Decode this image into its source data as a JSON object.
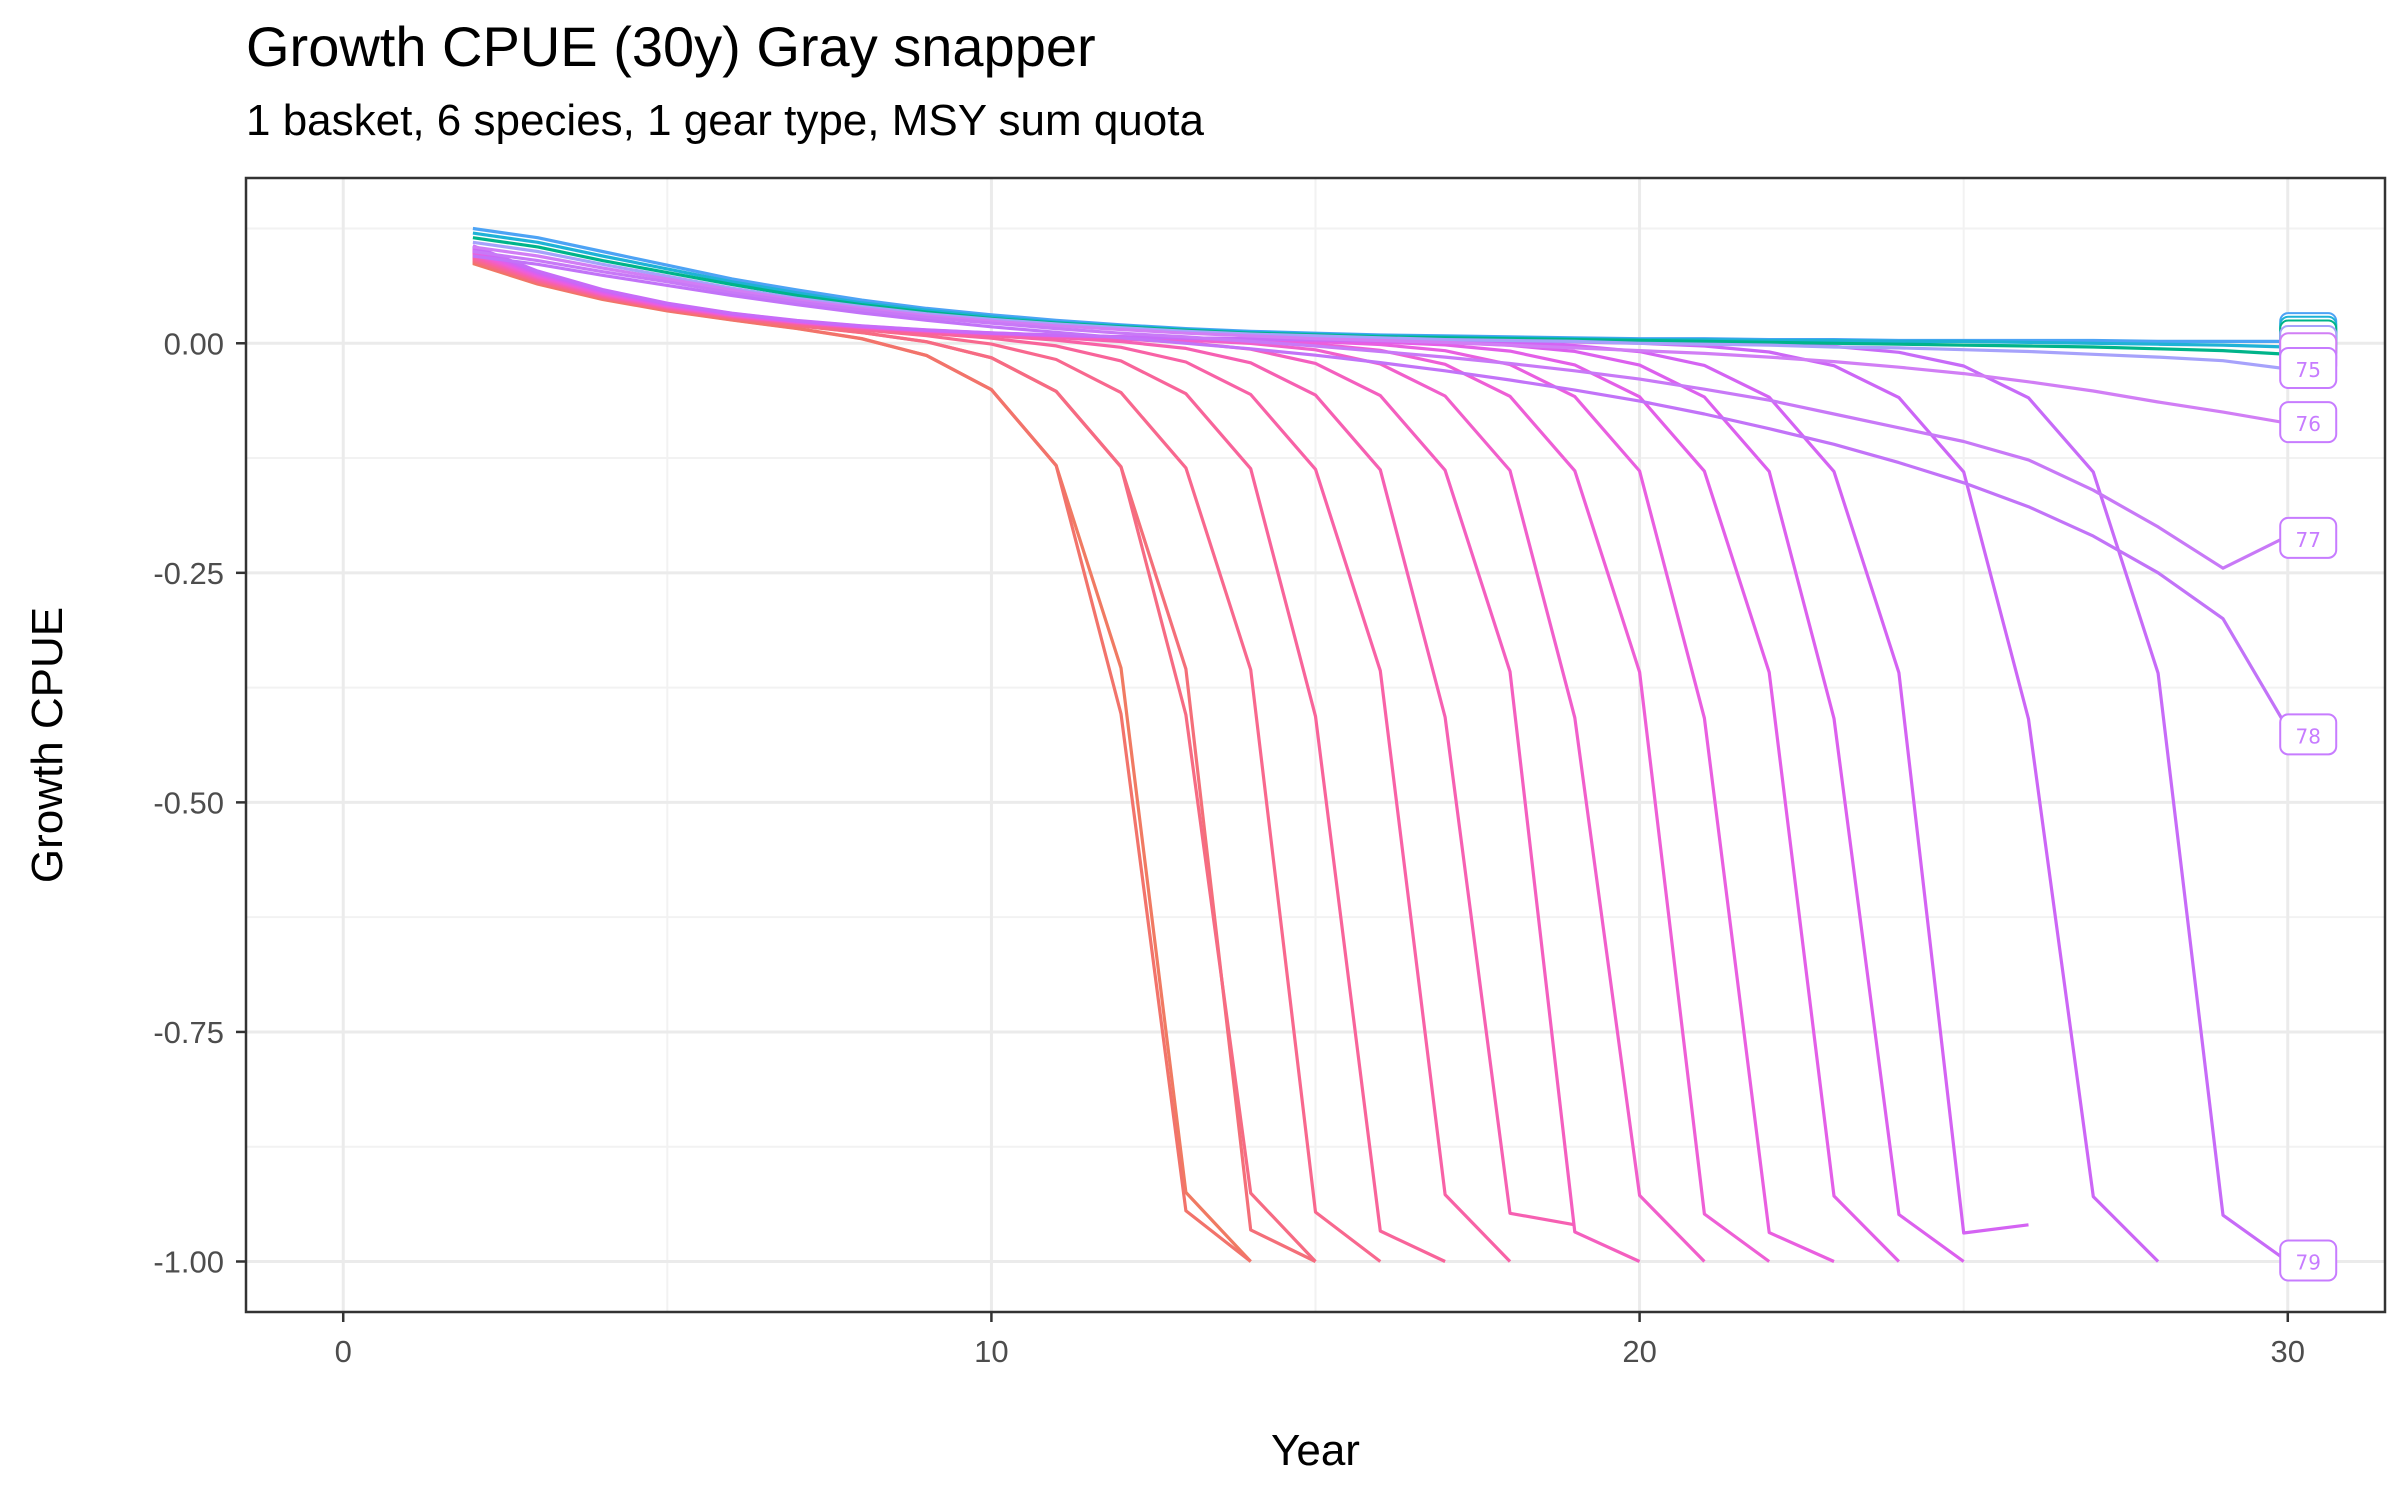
{
  "chart_data": {
    "type": "line",
    "title": "Growth CPUE (30y) Gray snapper",
    "subtitle": "1 basket, 6 species, 1 gear type, MSY sum quota",
    "xlabel": "Year",
    "ylabel": "Growth CPUE",
    "xlim": [
      -1.5,
      31.5
    ],
    "ylim": [
      -1.055,
      0.18
    ],
    "x_ticks": [
      0,
      10,
      20,
      30
    ],
    "x_tick_labels": [
      "0",
      "10",
      "20",
      "30"
    ],
    "y_ticks": [
      0,
      -0.25,
      -0.5,
      -0.75,
      -1
    ],
    "y_tick_labels": [
      "0.00",
      "-0.25",
      "-0.50",
      "-0.75",
      "-1.00"
    ],
    "grid": true,
    "legend": "none",
    "collapse_family": {
      "description_note": "",
      "start_year": 2,
      "collapse_years": [
        14,
        14,
        15,
        15,
        16,
        17,
        18,
        19,
        20,
        21,
        22,
        23,
        24,
        25,
        26,
        28,
        30
      ],
      "final_values": [
        -1.0,
        -1.0,
        -1.0,
        -1.0,
        -1.0,
        -1.0,
        -1.0,
        -0.96,
        -1.0,
        -1.0,
        -1.0,
        -1.0,
        -1.0,
        -1.0,
        -0.96,
        -1.0,
        -1.0
      ],
      "colors": [
        "#F07A62",
        "#F2736B",
        "#F46F79",
        "#F66B83",
        "#F8688E",
        "#F8649A",
        "#F862A6",
        "#F660B2",
        "#F45FBF",
        "#F15FCB",
        "#EE5FD6",
        "#E95FE0",
        "#E35FE8",
        "#DC60EE",
        "#D463F3",
        "#CC66F6",
        "#C76BF8"
      ]
    },
    "series": [
      {
        "x": [
          2,
          3,
          4,
          5,
          6,
          7,
          8,
          9,
          10,
          11,
          12,
          13,
          14,
          15,
          16,
          17,
          18,
          19,
          20,
          21,
          22,
          23,
          24,
          25,
          26,
          27,
          28,
          29,
          30
        ],
        "y": [
          0.125,
          0.115,
          0.1,
          0.085,
          0.07,
          0.058,
          0.047,
          0.038,
          0.031,
          0.025,
          0.02,
          0.016,
          0.013,
          0.011,
          0.009,
          0.008,
          0.007,
          0.006,
          0.005,
          0.005,
          0.004,
          0.004,
          0.003,
          0.003,
          0.003,
          0.003,
          0.002,
          0.002,
          0.002
        ],
        "color": "#4DA3F5",
        "name": ""
      },
      {
        "x": [
          2,
          3,
          4,
          5,
          6,
          7,
          8,
          9,
          10,
          11,
          12,
          13,
          14,
          15,
          16,
          17,
          18,
          19,
          20,
          21,
          22,
          23,
          24,
          25,
          26,
          27,
          28,
          29,
          30
        ],
        "y": [
          0.12,
          0.11,
          0.095,
          0.081,
          0.067,
          0.055,
          0.044,
          0.036,
          0.029,
          0.023,
          0.019,
          0.015,
          0.012,
          0.01,
          0.008,
          0.007,
          0.006,
          0.005,
          0.004,
          0.004,
          0.003,
          0.003,
          0.002,
          0.002,
          0.001,
          0.0,
          -0.001,
          -0.002,
          -0.004
        ],
        "color": "#1FB2D6",
        "name": ""
      },
      {
        "x": [
          2,
          3,
          4,
          5,
          6,
          7,
          8,
          9,
          10,
          11,
          12,
          13,
          14,
          15,
          16,
          17,
          18,
          19,
          20,
          21,
          22,
          23,
          24,
          25,
          26,
          27,
          28,
          29,
          30
        ],
        "y": [
          0.115,
          0.105,
          0.09,
          0.077,
          0.064,
          0.052,
          0.042,
          0.034,
          0.027,
          0.022,
          0.018,
          0.014,
          0.011,
          0.009,
          0.007,
          0.006,
          0.005,
          0.004,
          0.003,
          0.002,
          0.001,
          0.0,
          -0.001,
          -0.002,
          -0.003,
          -0.004,
          -0.006,
          -0.008,
          -0.012
        ],
        "color": "#00B48A",
        "name": ""
      },
      {
        "x": [
          2,
          3,
          4,
          5,
          6,
          7,
          8,
          9,
          10,
          11,
          12,
          13,
          14,
          15,
          16,
          17,
          18,
          19,
          20,
          21,
          22,
          23,
          24,
          25,
          26,
          27,
          28,
          29,
          30
        ],
        "y": [
          0.11,
          0.1,
          0.086,
          0.073,
          0.06,
          0.049,
          0.04,
          0.032,
          0.026,
          0.021,
          0.017,
          0.013,
          0.01,
          0.008,
          0.006,
          0.004,
          0.003,
          0.002,
          0.0,
          -0.001,
          -0.002,
          -0.004,
          -0.005,
          -0.007,
          -0.009,
          -0.012,
          -0.015,
          -0.019,
          -0.028
        ],
        "color": "#A6A2FB",
        "name": ""
      },
      {
        "x": [
          2,
          3,
          4,
          5,
          6,
          7,
          8,
          9,
          10,
          11,
          12,
          13,
          14,
          15,
          16,
          17,
          18,
          19,
          20,
          21,
          22,
          23,
          24,
          25,
          26,
          27,
          28,
          29,
          30
        ],
        "y": [
          0.105,
          0.095,
          0.082,
          0.07,
          0.058,
          0.047,
          0.038,
          0.03,
          0.024,
          0.019,
          0.015,
          0.011,
          0.008,
          0.005,
          0.003,
          0.001,
          -0.002,
          -0.005,
          -0.008,
          -0.011,
          -0.015,
          -0.02,
          -0.026,
          -0.033,
          -0.042,
          -0.052,
          -0.064,
          -0.075,
          -0.087
        ],
        "color": "#D17EF5",
        "name": ""
      },
      {
        "x": [
          2,
          3,
          4,
          5,
          6,
          7,
          8,
          9,
          10,
          11,
          12,
          13,
          14,
          15,
          16,
          17,
          18,
          19,
          20,
          21,
          22,
          23,
          24,
          25,
          26,
          27,
          28,
          29,
          30
        ],
        "y": [
          0.1,
          0.09,
          0.078,
          0.067,
          0.055,
          0.045,
          0.036,
          0.028,
          0.022,
          0.016,
          0.011,
          0.007,
          0.002,
          -0.003,
          -0.009,
          -0.015,
          -0.022,
          -0.03,
          -0.039,
          -0.05,
          -0.062,
          -0.077,
          -0.092,
          -0.107,
          -0.127,
          -0.16,
          -0.2,
          -0.245,
          -0.21
        ],
        "color": "#C879F7",
        "name": ""
      },
      {
        "x": [
          2,
          3,
          4,
          5,
          6,
          7,
          8,
          9,
          10,
          11,
          12,
          13,
          14,
          15,
          16,
          17,
          18,
          19,
          20,
          21,
          22,
          23,
          24,
          25,
          26,
          27,
          28,
          29,
          30
        ],
        "y": [
          0.095,
          0.086,
          0.074,
          0.063,
          0.052,
          0.042,
          0.033,
          0.025,
          0.018,
          0.012,
          0.006,
          0.0,
          -0.006,
          -0.013,
          -0.021,
          -0.03,
          -0.04,
          -0.051,
          -0.063,
          -0.077,
          -0.093,
          -0.11,
          -0.13,
          -0.152,
          -0.178,
          -0.21,
          -0.25,
          -0.3,
          -0.42
        ],
        "color": "#C273F8",
        "name": ""
      }
    ],
    "end_labels": [
      {
        "text": "75",
        "x": 30.3,
        "y": -0.028
      },
      {
        "text": "76",
        "x": 30.3,
        "y": -0.087
      },
      {
        "text": "77",
        "x": 30.3,
        "y": -0.213
      },
      {
        "text": "78",
        "x": 30.3,
        "y": -0.427
      },
      {
        "text": "79",
        "x": 30.3,
        "y": -1.0
      }
    ],
    "end_label_color": "#C77CFF"
  }
}
